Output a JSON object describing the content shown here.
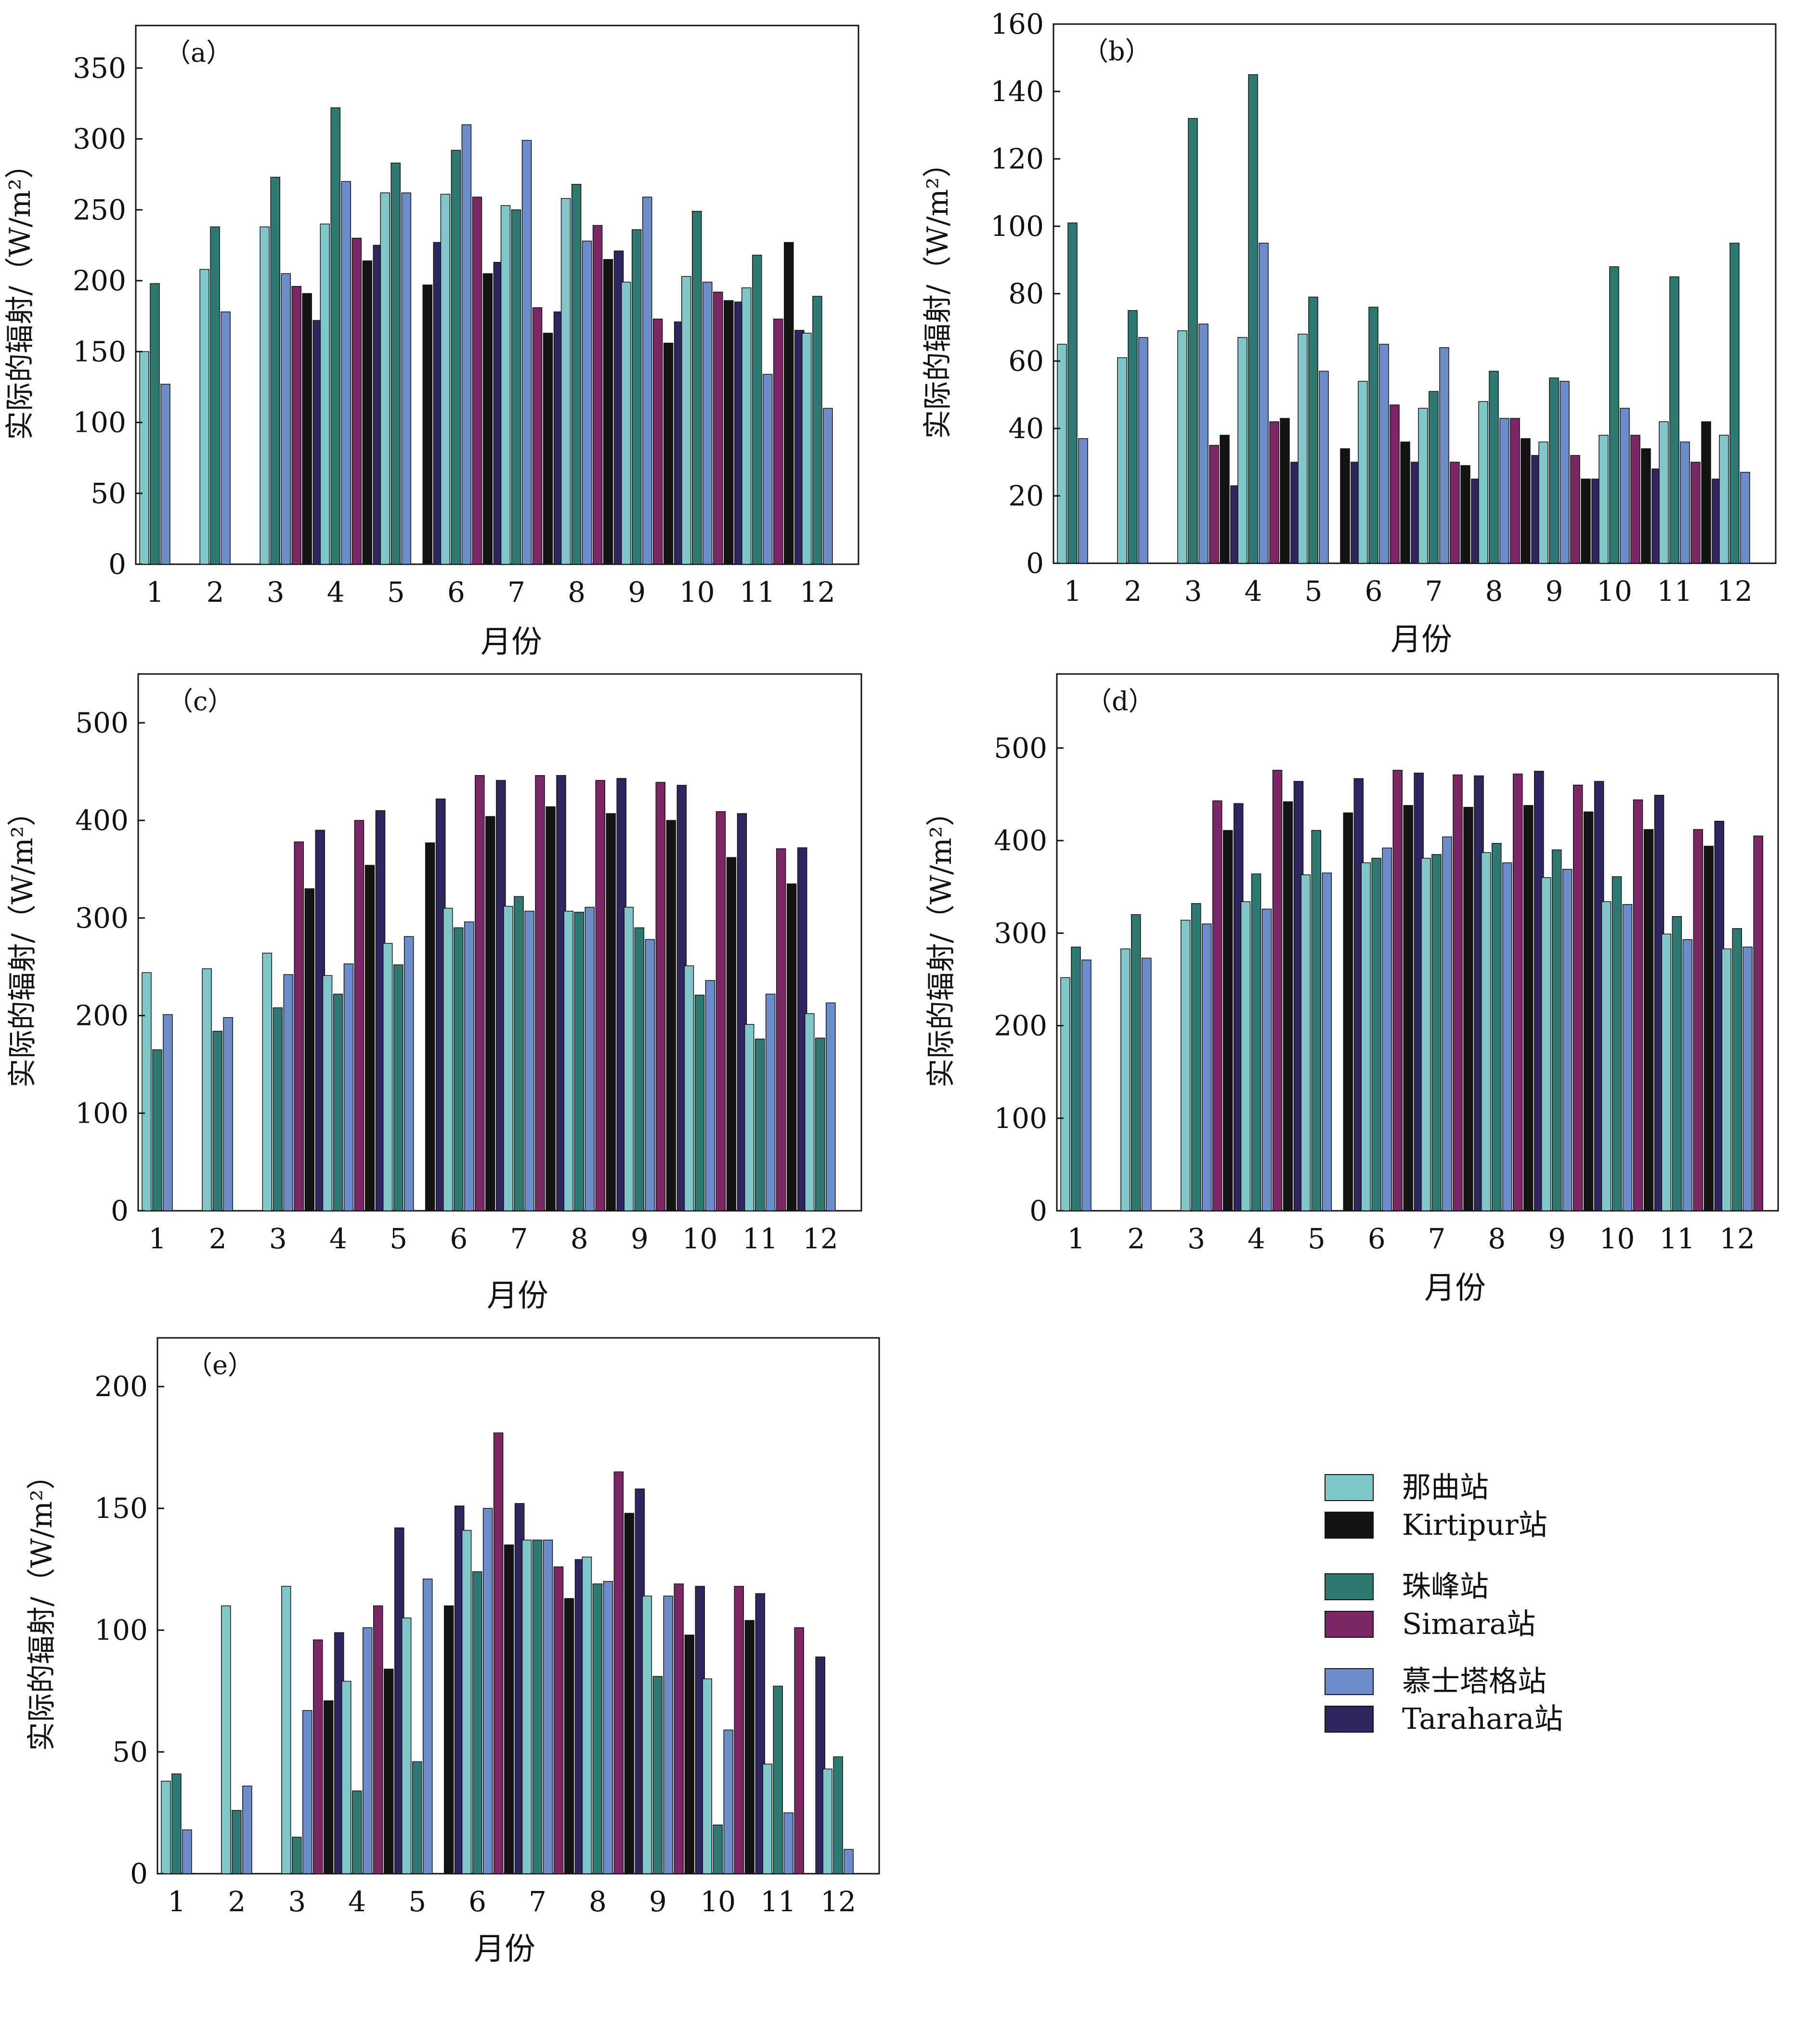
{
  "legend": {
    "title": "",
    "items": [
      {
        "name": "那曲站",
        "color": "#7FC7C9"
      },
      {
        "name": "Kirtipur站",
        "color": "#141414"
      },
      {
        "name": "珠峰站",
        "color": "#2E7A73"
      },
      {
        "name": "Simara站",
        "color": "#7B2766"
      },
      {
        "name": "慕士塔格站",
        "color": "#6B8DC9"
      },
      {
        "name": "Tarahara站",
        "color": "#2F255F"
      }
    ]
  },
  "chart_data": [
    {
      "type": "bar",
      "label": "（a）",
      "xlabel": "月份",
      "ylabel": "实际的辐射/（W/m²）",
      "categories": [
        "1",
        "2",
        "3",
        "4",
        "5",
        "6",
        "7",
        "8",
        "9",
        "10",
        "11",
        "12"
      ],
      "ylim": [
        0,
        380
      ],
      "yticks": [
        0,
        50,
        100,
        150,
        200,
        250,
        300,
        350
      ],
      "series": [
        {
          "name": "那曲站",
          "values": [
            150,
            208,
            238,
            240,
            262,
            261,
            253,
            258,
            199,
            203,
            195,
            163
          ]
        },
        {
          "name": "珠峰站",
          "values": [
            198,
            238,
            273,
            322,
            283,
            292,
            250,
            268,
            236,
            249,
            218,
            189
          ]
        },
        {
          "name": "慕士塔格站",
          "values": [
            127,
            178,
            205,
            270,
            262,
            310,
            299,
            228,
            259,
            199,
            134,
            110
          ]
        },
        {
          "name": "Simara站",
          "values": [
            null,
            null,
            196,
            230,
            null,
            259,
            181,
            239,
            173,
            192,
            173,
            null
          ]
        },
        {
          "name": "Kirtipur站",
          "values": [
            null,
            null,
            191,
            214,
            197,
            205,
            163,
            215,
            156,
            186,
            227,
            null
          ]
        },
        {
          "name": "Tarahara站",
          "values": [
            null,
            null,
            172,
            225,
            227,
            213,
            178,
            221,
            171,
            185,
            165,
            null
          ]
        }
      ]
    },
    {
      "type": "bar",
      "label": "（b）",
      "xlabel": "月份",
      "ylabel": "实际的辐射/（W/m²）",
      "categories": [
        "1",
        "2",
        "3",
        "4",
        "5",
        "6",
        "7",
        "8",
        "9",
        "10",
        "11",
        "12"
      ],
      "ylim": [
        0,
        160
      ],
      "yticks": [
        0,
        20,
        40,
        60,
        80,
        100,
        120,
        140,
        160
      ],
      "series": [
        {
          "name": "那曲站",
          "values": [
            65,
            61,
            69,
            67,
            68,
            54,
            46,
            48,
            36,
            38,
            42,
            38
          ]
        },
        {
          "name": "珠峰站",
          "values": [
            101,
            75,
            132,
            145,
            79,
            76,
            51,
            57,
            55,
            88,
            85,
            95
          ]
        },
        {
          "name": "慕士塔格站",
          "values": [
            37,
            67,
            71,
            95,
            57,
            65,
            64,
            43,
            54,
            46,
            36,
            27
          ]
        },
        {
          "name": "Simara站",
          "values": [
            null,
            null,
            35,
            42,
            null,
            47,
            30,
            43,
            32,
            38,
            30,
            null
          ]
        },
        {
          "name": "Kirtipur站",
          "values": [
            null,
            null,
            38,
            43,
            34,
            36,
            29,
            37,
            25,
            34,
            42,
            null
          ]
        },
        {
          "name": "Tarahara站",
          "values": [
            null,
            null,
            23,
            30,
            30,
            30,
            25,
            32,
            25,
            28,
            25,
            null
          ]
        }
      ]
    },
    {
      "type": "bar",
      "label": "（c）",
      "xlabel": "月份",
      "ylabel": "实际的辐射/（W/m²）",
      "categories": [
        "1",
        "2",
        "3",
        "4",
        "5",
        "6",
        "7",
        "8",
        "9",
        "10",
        "11",
        "12"
      ],
      "ylim": [
        0,
        550
      ],
      "yticks": [
        0,
        100,
        200,
        300,
        400,
        500
      ],
      "series": [
        {
          "name": "那曲站",
          "values": [
            244,
            248,
            264,
            241,
            274,
            310,
            312,
            307,
            311,
            251,
            191,
            202
          ]
        },
        {
          "name": "珠峰站",
          "values": [
            165,
            184,
            208,
            222,
            252,
            290,
            322,
            306,
            290,
            221,
            176,
            177
          ]
        },
        {
          "name": "慕士塔格站",
          "values": [
            201,
            198,
            242,
            253,
            281,
            296,
            307,
            311,
            278,
            236,
            222,
            213
          ]
        },
        {
          "name": "Simara站",
          "values": [
            null,
            null,
            378,
            400,
            null,
            446,
            446,
            441,
            439,
            409,
            371,
            null
          ]
        },
        {
          "name": "Kirtipur站",
          "values": [
            null,
            null,
            330,
            354,
            377,
            404,
            414,
            407,
            400,
            362,
            335,
            null
          ]
        },
        {
          "name": "Tarahara站",
          "values": [
            null,
            null,
            390,
            410,
            422,
            441,
            446,
            443,
            436,
            407,
            372,
            null
          ]
        }
      ]
    },
    {
      "type": "bar",
      "label": "（d）",
      "xlabel": "月份",
      "ylabel": "实际的辐射/（W/m²）",
      "categories": [
        "1",
        "2",
        "3",
        "4",
        "5",
        "6",
        "7",
        "8",
        "9",
        "10",
        "11",
        "12"
      ],
      "ylim": [
        0,
        580
      ],
      "yticks": [
        0,
        100,
        200,
        300,
        400,
        500
      ],
      "series": [
        {
          "name": "那曲站",
          "values": [
            252,
            283,
            314,
            334,
            363,
            376,
            381,
            387,
            360,
            334,
            299,
            283
          ]
        },
        {
          "name": "珠峰站",
          "values": [
            285,
            320,
            332,
            364,
            411,
            381,
            385,
            397,
            390,
            361,
            318,
            305
          ]
        },
        {
          "name": "慕士塔格站",
          "values": [
            271,
            273,
            310,
            326,
            365,
            392,
            404,
            376,
            369,
            331,
            293,
            285
          ]
        },
        {
          "name": "Simara站",
          "values": [
            null,
            null,
            443,
            476,
            null,
            476,
            471,
            472,
            460,
            444,
            412,
            405
          ]
        },
        {
          "name": "Kirtipur站",
          "values": [
            null,
            null,
            411,
            442,
            430,
            438,
            436,
            438,
            431,
            412,
            394,
            null
          ]
        },
        {
          "name": "Tarahara站",
          "values": [
            null,
            null,
            440,
            464,
            467,
            473,
            470,
            475,
            464,
            449,
            421,
            null
          ]
        }
      ]
    },
    {
      "type": "bar",
      "label": "（e）",
      "xlabel": "月份",
      "ylabel": "实际的辐射/（W/m²）",
      "categories": [
        "1",
        "2",
        "3",
        "4",
        "5",
        "6",
        "7",
        "8",
        "9",
        "10",
        "11",
        "12"
      ],
      "ylim": [
        0,
        220
      ],
      "yticks": [
        0,
        50,
        100,
        150,
        200
      ],
      "series": [
        {
          "name": "那曲站",
          "values": [
            38,
            110,
            118,
            79,
            105,
            141,
            137,
            130,
            114,
            80,
            45,
            43
          ]
        },
        {
          "name": "珠峰站",
          "values": [
            41,
            26,
            15,
            34,
            46,
            124,
            137,
            119,
            81,
            20,
            77,
            48
          ]
        },
        {
          "name": "慕士塔格站",
          "values": [
            18,
            36,
            67,
            101,
            121,
            150,
            137,
            120,
            114,
            59,
            25,
            10
          ]
        },
        {
          "name": "Simara站",
          "values": [
            null,
            null,
            96,
            110,
            null,
            181,
            126,
            165,
            119,
            118,
            101,
            null
          ]
        },
        {
          "name": "Kirtipur站",
          "values": [
            null,
            null,
            71,
            84,
            110,
            135,
            113,
            148,
            98,
            104,
            null,
            null
          ]
        },
        {
          "name": "Tarahara站",
          "values": [
            null,
            null,
            99,
            142,
            151,
            152,
            129,
            158,
            118,
            115,
            89,
            null
          ]
        }
      ]
    }
  ]
}
